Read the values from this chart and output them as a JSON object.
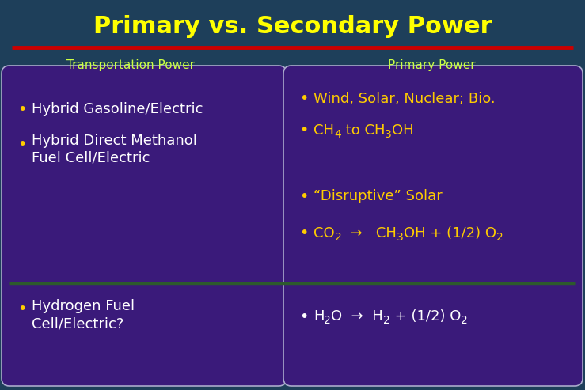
{
  "title": "Primary vs. Secondary Power",
  "title_color": "#FFFF00",
  "title_fontsize": 22,
  "bg_color": "#1e3f5a",
  "red_line_color": "#cc0000",
  "col_header_color": "#ccff44",
  "col_header_left": "Transportation Power",
  "col_header_right": "Primary Power",
  "box_bg_color": "#3a1a7a",
  "box_border_color": "#aaaacc",
  "green_line_color": "#2d5a2d",
  "white_text": "#ffffff",
  "yellow_text": "#ffcc00",
  "bullet_char": "•",
  "arrow": "→"
}
